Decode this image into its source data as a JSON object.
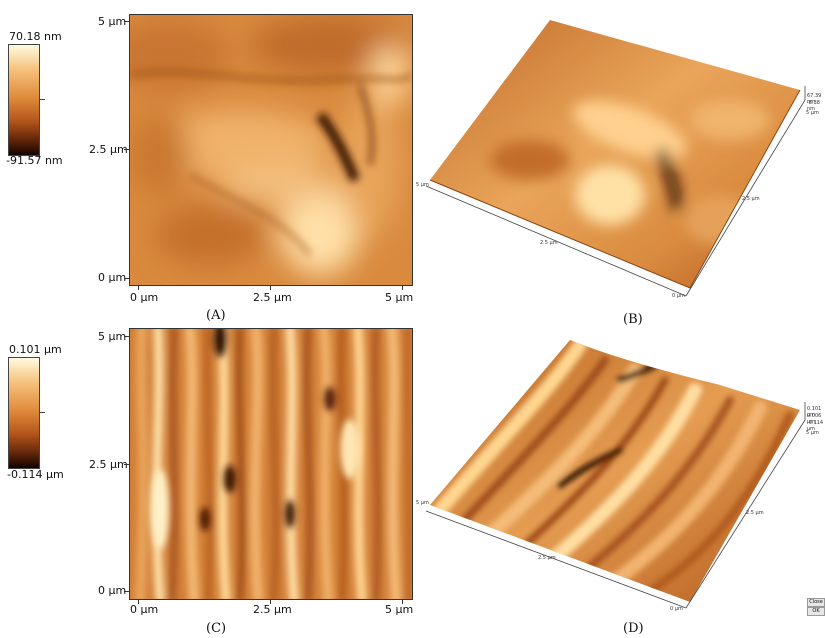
{
  "panels": {
    "A": {
      "caption": "(A)",
      "scale_max": "70.18 nm",
      "scale_min": "-91.57 nm",
      "y_ticks": [
        "5 µm",
        "2.5 µm",
        "0 µm"
      ],
      "x_ticks": [
        "0 µm",
        "2.5 µm",
        "5 µm"
      ]
    },
    "B": {
      "caption": "(B)",
      "axis_label_x": "2.5 µm",
      "axis_label_y": "2.5 µm",
      "corner_left": "5 µm",
      "corner_bottom": "0 µm",
      "corner_right": "5 µm",
      "z_top": "67.39 nm",
      "z_mid": "-8.38 nm"
    },
    "C": {
      "caption": "(C)",
      "scale_max": "0.101 µm",
      "scale_min": "-0.114 µm",
      "y_ticks": [
        "5 µm",
        "2.5 µm",
        "0 µm"
      ],
      "x_ticks": [
        "0 µm",
        "2.5 µm",
        "5 µm"
      ]
    },
    "D": {
      "caption": "(D)",
      "axis_label_x": "2.5 µm",
      "axis_label_y": "2.5 µm",
      "corner_left": "5 µm",
      "corner_bottom": "0 µm",
      "corner_right": "5 µm",
      "z_top": "0.101 µm",
      "z_mid": "0.006 µm",
      "z_low": "-0.114 µm",
      "button_close": "Close",
      "button_ok": "OK"
    }
  }
}
